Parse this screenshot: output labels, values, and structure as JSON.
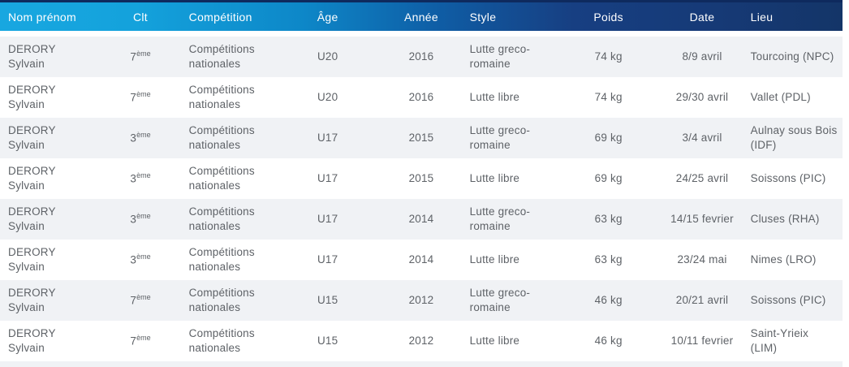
{
  "table": {
    "columns": [
      "Nom prénom",
      "Clt",
      "Compétition",
      "Âge",
      "Année",
      "Style",
      "Poids",
      "Date",
      "Lieu"
    ],
    "rows": [
      {
        "name": "DERORY Sylvain",
        "rank": "7",
        "rank_suffix": "ème",
        "competition": "Compétitions nationales",
        "age": "U20",
        "year": "2016",
        "style": "Lutte greco-romaine",
        "weight": "74 kg",
        "date": "8/9 avril",
        "location": "Tourcoing (NPC)"
      },
      {
        "name": "DERORY Sylvain",
        "rank": "7",
        "rank_suffix": "ème",
        "competition": "Compétitions nationales",
        "age": "U20",
        "year": "2016",
        "style": "Lutte libre",
        "weight": "74 kg",
        "date": "29/30 avril",
        "location": "Vallet (PDL)"
      },
      {
        "name": "DERORY Sylvain",
        "rank": "3",
        "rank_suffix": "ème",
        "competition": "Compétitions nationales",
        "age": "U17",
        "year": "2015",
        "style": "Lutte greco-romaine",
        "weight": "69 kg",
        "date": "3/4 avril",
        "location": "Aulnay sous Bois (IDF)"
      },
      {
        "name": "DERORY Sylvain",
        "rank": "3",
        "rank_suffix": "ème",
        "competition": "Compétitions nationales",
        "age": "U17",
        "year": "2015",
        "style": "Lutte libre",
        "weight": "69 kg",
        "date": "24/25 avril",
        "location": "Soissons (PIC)"
      },
      {
        "name": "DERORY Sylvain",
        "rank": "3",
        "rank_suffix": "ème",
        "competition": "Compétitions nationales",
        "age": "U17",
        "year": "2014",
        "style": "Lutte greco-romaine",
        "weight": "63 kg",
        "date": "14/15 fevrier",
        "location": "Cluses (RHA)"
      },
      {
        "name": "DERORY Sylvain",
        "rank": "3",
        "rank_suffix": "ème",
        "competition": "Compétitions nationales",
        "age": "U17",
        "year": "2014",
        "style": "Lutte libre",
        "weight": "63 kg",
        "date": "23/24 mai",
        "location": "Nimes (LRO)"
      },
      {
        "name": "DERORY Sylvain",
        "rank": "7",
        "rank_suffix": "ème",
        "competition": "Compétitions nationales",
        "age": "U15",
        "year": "2012",
        "style": "Lutte greco-romaine",
        "weight": "46 kg",
        "date": "20/21 avril",
        "location": "Soissons (PIC)"
      },
      {
        "name": "DERORY Sylvain",
        "rank": "7",
        "rank_suffix": "ème",
        "competition": "Compétitions nationales",
        "age": "U15",
        "year": "2012",
        "style": "Lutte libre",
        "weight": "46 kg",
        "date": "10/11 fevrier",
        "location": "Saint-Yrieix (LIM)"
      }
    ]
  },
  "colors": {
    "header_gradient_start": "#18a7e0",
    "header_gradient_end": "#143568",
    "header_top_border": "#0e2a5e",
    "row_stripe": "#f0f2f5",
    "body_text": "#5e6267",
    "header_text": "#ffffff"
  }
}
